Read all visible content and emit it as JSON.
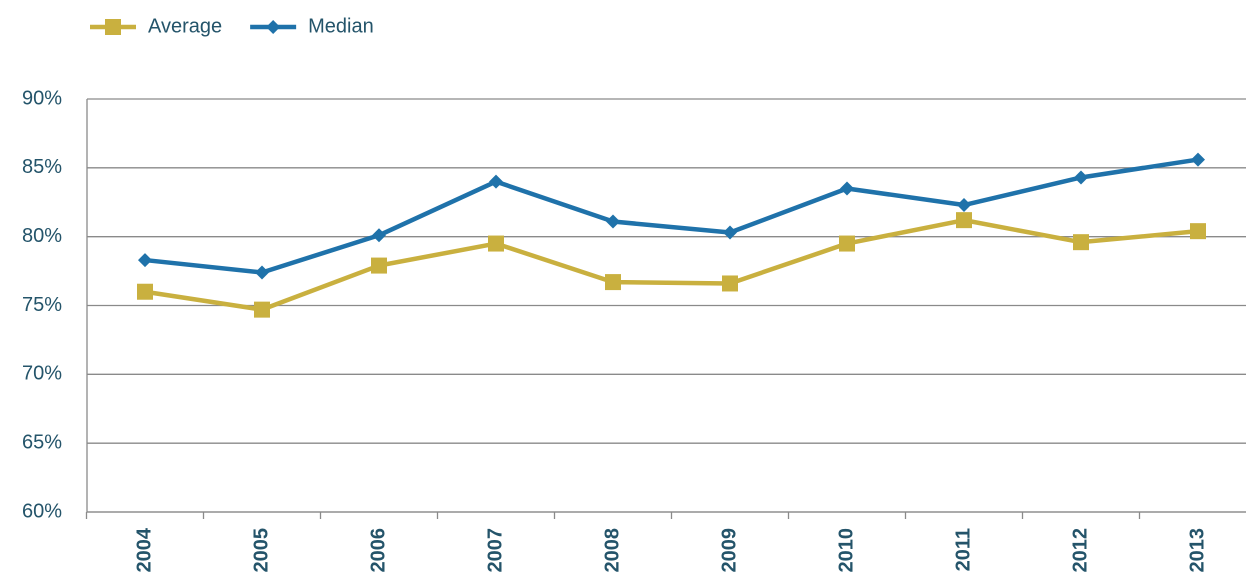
{
  "chart_data": {
    "type": "line",
    "categories": [
      "2004",
      "2005",
      "2006",
      "2007",
      "2008",
      "2009",
      "2010",
      "2011",
      "2012",
      "2013"
    ],
    "series": [
      {
        "name": "Average",
        "color": "#c9b03f",
        "marker": "square",
        "values": [
          76.0,
          74.7,
          77.9,
          79.5,
          76.7,
          76.6,
          79.5,
          81.2,
          79.6,
          80.4
        ]
      },
      {
        "name": "Median",
        "color": "#1f72aa",
        "marker": "diamond",
        "values": [
          78.3,
          77.4,
          80.1,
          84.0,
          81.1,
          80.3,
          83.5,
          82.3,
          84.3,
          85.6
        ]
      }
    ],
    "ylim": [
      60,
      90
    ],
    "yticks": [
      {
        "value": 60,
        "label": "60%"
      },
      {
        "value": 65,
        "label": "65%"
      },
      {
        "value": 70,
        "label": "70%"
      },
      {
        "value": 75,
        "label": "75%"
      },
      {
        "value": 80,
        "label": "80%"
      },
      {
        "value": 85,
        "label": "85%"
      },
      {
        "value": 90,
        "label": "90%"
      }
    ],
    "grid": true,
    "legend": "top-left"
  }
}
